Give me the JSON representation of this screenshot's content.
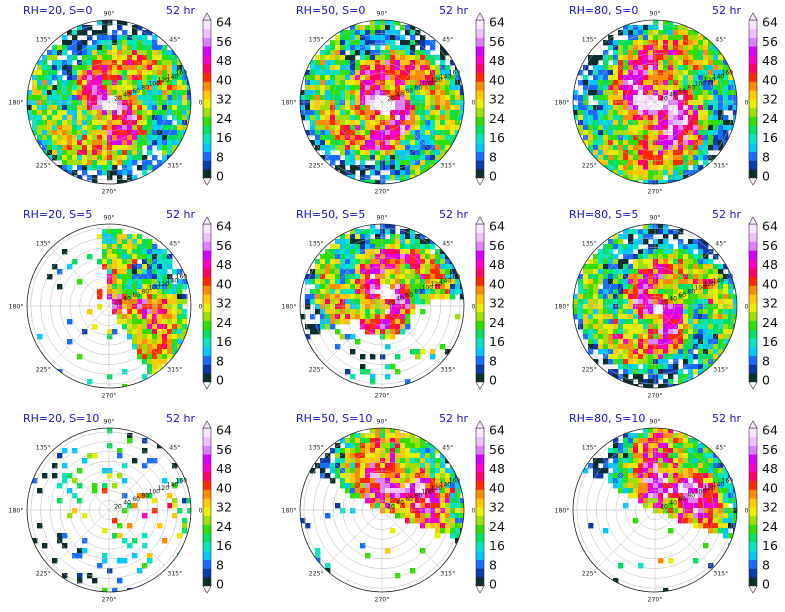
{
  "chart_data": [
    {
      "type": "heatmap",
      "projection": "polar",
      "title": "RH=20, S=0",
      "time_label": "52 hr",
      "angle_ticks": [
        "90°",
        "45°",
        "0°",
        "315°",
        "270°",
        "225°",
        "180°",
        "135°"
      ],
      "radial_ticks": [
        "20",
        "40",
        "60",
        "80",
        "100",
        "120",
        "140",
        "160"
      ],
      "colorbar_ticks": [
        "64",
        "56",
        "48",
        "40",
        "32",
        "24",
        "16",
        "8",
        "0"
      ],
      "colorbar_range": [
        0,
        64
      ],
      "pattern": {
        "coverage": "full",
        "intensity": 0.72,
        "eye_radius": 0.1,
        "spiral": 0.55,
        "shift": "center"
      }
    },
    {
      "type": "heatmap",
      "projection": "polar",
      "title": "RH=50, S=0",
      "time_label": "52 hr",
      "angle_ticks": [
        "90°",
        "45°",
        "0°",
        "315°",
        "270°",
        "225°",
        "180°",
        "135°"
      ],
      "radial_ticks": [
        "20",
        "40",
        "60",
        "80",
        "100",
        "120",
        "140",
        "160"
      ],
      "colorbar_ticks": [
        "64",
        "56",
        "48",
        "40",
        "32",
        "24",
        "16",
        "8",
        "0"
      ],
      "colorbar_range": [
        0,
        64
      ],
      "pattern": {
        "coverage": "full",
        "intensity": 0.78,
        "eye_radius": 0.12,
        "spiral": 0.65,
        "shift": "center"
      }
    },
    {
      "type": "heatmap",
      "projection": "polar",
      "title": "RH=80, S=0",
      "time_label": "52 hr",
      "angle_ticks": [
        "90°",
        "45°",
        "0°",
        "315°",
        "270°",
        "225°",
        "180°",
        "135°"
      ],
      "radial_ticks": [
        "20",
        "40",
        "60",
        "80",
        "100",
        "120",
        "140",
        "160"
      ],
      "colorbar_ticks": [
        "64",
        "56",
        "48",
        "40",
        "32",
        "24",
        "16",
        "8",
        "0"
      ],
      "colorbar_range": [
        0,
        64
      ],
      "pattern": {
        "coverage": "full",
        "intensity": 0.9,
        "eye_radius": 0.09,
        "spiral": 0.4,
        "shift": "center"
      }
    },
    {
      "type": "heatmap",
      "projection": "polar",
      "title": "RH=20, S=5",
      "time_label": "52 hr",
      "angle_ticks": [
        "90°",
        "45°",
        "0°",
        "315°",
        "270°",
        "225°",
        "180°",
        "135°"
      ],
      "radial_ticks": [
        "20",
        "40",
        "60",
        "80",
        "100",
        "120",
        "140",
        "160"
      ],
      "colorbar_ticks": [
        "64",
        "56",
        "48",
        "40",
        "32",
        "24",
        "16",
        "8",
        "0"
      ],
      "colorbar_range": [
        0,
        64
      ],
      "pattern": {
        "coverage": "east",
        "intensity": 0.62,
        "eye_radius": 0.0,
        "spiral": 0.3,
        "shift": "east"
      }
    },
    {
      "type": "heatmap",
      "projection": "polar",
      "title": "RH=50, S=5",
      "time_label": "52 hr",
      "angle_ticks": [
        "90°",
        "45°",
        "0°",
        "315°",
        "270°",
        "225°",
        "180°",
        "135°"
      ],
      "radial_ticks": [
        "20",
        "40",
        "60",
        "80",
        "100",
        "120",
        "140",
        "160"
      ],
      "colorbar_ticks": [
        "64",
        "56",
        "48",
        "40",
        "32",
        "24",
        "16",
        "8",
        "0"
      ],
      "colorbar_range": [
        0,
        64
      ],
      "pattern": {
        "coverage": "north",
        "intensity": 0.74,
        "eye_radius": 0.1,
        "spiral": 0.7,
        "shift": "north"
      }
    },
    {
      "type": "heatmap",
      "projection": "polar",
      "title": "RH=80, S=5",
      "time_label": "52 hr",
      "angle_ticks": [
        "90°",
        "45°",
        "0°",
        "315°",
        "270°",
        "225°",
        "180°",
        "135°"
      ],
      "radial_ticks": [
        "20",
        "40",
        "60",
        "80",
        "100",
        "120",
        "140",
        "160"
      ],
      "colorbar_ticks": [
        "64",
        "56",
        "48",
        "40",
        "32",
        "24",
        "16",
        "8",
        "0"
      ],
      "colorbar_range": [
        0,
        64
      ],
      "pattern": {
        "coverage": "full",
        "intensity": 0.72,
        "eye_radius": 0.08,
        "spiral": 0.6,
        "shift": "center"
      }
    },
    {
      "type": "heatmap",
      "projection": "polar",
      "title": "RH=20, S=10",
      "time_label": "52 hr",
      "angle_ticks": [
        "90°",
        "45°",
        "0°",
        "315°",
        "270°",
        "225°",
        "180°",
        "135°"
      ],
      "radial_ticks": [
        "20",
        "40",
        "60",
        "80",
        "100",
        "120",
        "140",
        "160"
      ],
      "colorbar_ticks": [
        "64",
        "56",
        "48",
        "40",
        "32",
        "24",
        "16",
        "8",
        "0"
      ],
      "colorbar_range": [
        0,
        64
      ],
      "pattern": {
        "coverage": "sparse",
        "intensity": 0.55,
        "eye_radius": 0.0,
        "spiral": 0.2,
        "shift": "east"
      }
    },
    {
      "type": "heatmap",
      "projection": "polar",
      "title": "RH=50, S=10",
      "time_label": "52 hr",
      "angle_ticks": [
        "90°",
        "45°",
        "0°",
        "315°",
        "270°",
        "225°",
        "180°",
        "135°"
      ],
      "radial_ticks": [
        "20",
        "40",
        "60",
        "80",
        "100",
        "120",
        "140",
        "160"
      ],
      "colorbar_ticks": [
        "64",
        "56",
        "48",
        "40",
        "32",
        "24",
        "16",
        "8",
        "0"
      ],
      "colorbar_range": [
        0,
        64
      ],
      "pattern": {
        "coverage": "northeast",
        "intensity": 0.75,
        "eye_radius": 0.0,
        "spiral": 0.3,
        "shift": "northeast"
      }
    },
    {
      "type": "heatmap",
      "projection": "polar",
      "title": "RH=80, S=10",
      "time_label": "52 hr",
      "angle_ticks": [
        "90°",
        "45°",
        "0°",
        "315°",
        "270°",
        "225°",
        "180°",
        "135°"
      ],
      "radial_ticks": [
        "20",
        "40",
        "60",
        "80",
        "100",
        "120",
        "140",
        "160"
      ],
      "colorbar_ticks": [
        "64",
        "56",
        "48",
        "40",
        "32",
        "24",
        "16",
        "8",
        "0"
      ],
      "colorbar_range": [
        0,
        64
      ],
      "pattern": {
        "coverage": "northeast",
        "intensity": 0.8,
        "eye_radius": 0.0,
        "spiral": 0.35,
        "shift": "northeast"
      }
    }
  ],
  "colormap": [
    "#0b2e2e",
    "#0b3aa8",
    "#1a6bff",
    "#00c8ff",
    "#00e6c0",
    "#00e060",
    "#2ee000",
    "#9ee000",
    "#e8f000",
    "#ffc800",
    "#ff8a00",
    "#ff2a00",
    "#ff0066",
    "#ff00c8",
    "#d400ff",
    "#e080ff",
    "#f2c0ff",
    "#fbe6ff"
  ]
}
